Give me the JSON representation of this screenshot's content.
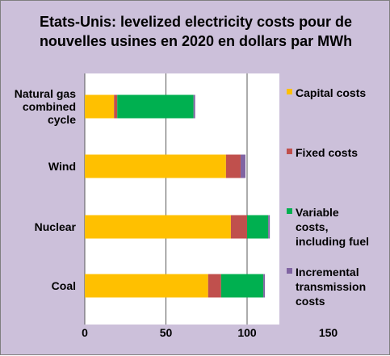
{
  "chart_data": {
    "type": "bar",
    "orientation": "horizontal",
    "stacked": true,
    "title_lines": [
      "Etats-Unis: levelized electricity costs pour de",
      "nouvelles usines en 2020 en dollars par MWh"
    ],
    "categories": [
      [
        "Natural gas",
        "combined",
        "cycle"
      ],
      [
        "Wind"
      ],
      [
        "Nuclear"
      ],
      [
        "Coal"
      ]
    ],
    "series": [
      {
        "name": [
          "Capital costs"
        ],
        "color": "#ffc000",
        "values": [
          18,
          87,
          90,
          76
        ]
      },
      {
        "name": [
          "Fixed costs"
        ],
        "color": "#c0504d",
        "values": [
          2,
          9,
          10,
          8
        ]
      },
      {
        "name": [
          "Variable",
          "costs,",
          "including fuel"
        ],
        "color": "#00b050",
        "values": [
          47,
          0,
          13,
          26
        ]
      },
      {
        "name": [
          "Incremental",
          "transmission",
          "costs"
        ],
        "color": "#8064a2",
        "values": [
          1,
          3,
          1,
          1
        ]
      }
    ],
    "xticks": [
      "0",
      "50",
      "100",
      "150"
    ],
    "xlim": [
      0,
      150
    ],
    "grid": true,
    "legend_position": "right"
  }
}
